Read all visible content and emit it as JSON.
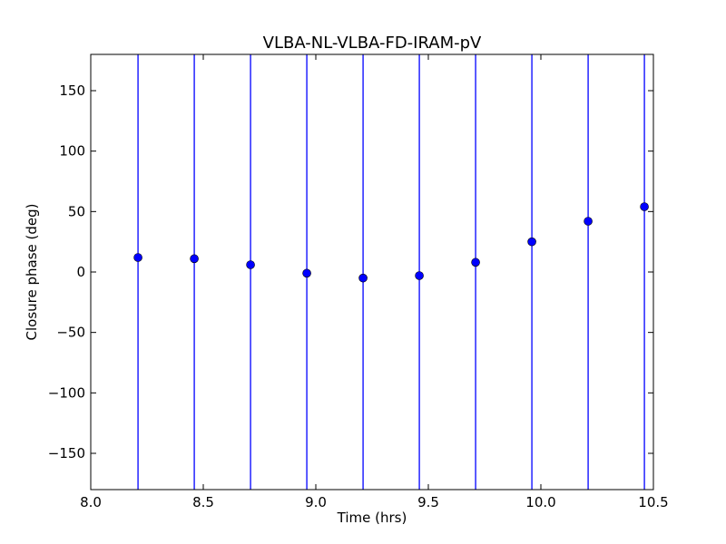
{
  "chart_data": {
    "type": "scatter",
    "title": "VLBA-NL-VLBA-FD-IRAM-pV",
    "xlabel": "Time (hrs)",
    "ylabel": "Closure phase (deg)",
    "xlim": [
      8.0,
      10.5
    ],
    "ylim": [
      -180,
      180
    ],
    "xticks": [
      8.0,
      8.5,
      9.0,
      9.5,
      10.0,
      10.5
    ],
    "xtick_labels": [
      "8.0",
      "8.5",
      "9.0",
      "9.5",
      "10.0",
      "10.5"
    ],
    "yticks": [
      -150,
      -100,
      -50,
      0,
      50,
      100,
      150
    ],
    "ytick_labels": [
      "−150",
      "−100",
      "−50",
      "0",
      "50",
      "100",
      "150"
    ],
    "grid": false,
    "series": [
      {
        "x": [
          8.21,
          8.46,
          8.71,
          8.96,
          9.21,
          9.46,
          9.71,
          9.96,
          10.21,
          10.46
        ],
        "y": [
          12,
          11,
          6,
          -1,
          -5,
          -3,
          8,
          25,
          42,
          54
        ],
        "yerr_low": [
          -180,
          -180,
          -180,
          -180,
          -180,
          -180,
          -180,
          -180,
          -180,
          -180
        ],
        "yerr_high": [
          180,
          180,
          180,
          180,
          180,
          180,
          180,
          180,
          180,
          180
        ]
      }
    ],
    "colors": {
      "marker": "#0000ff",
      "errorbar": "#0000ff",
      "axes": "#000000"
    }
  }
}
